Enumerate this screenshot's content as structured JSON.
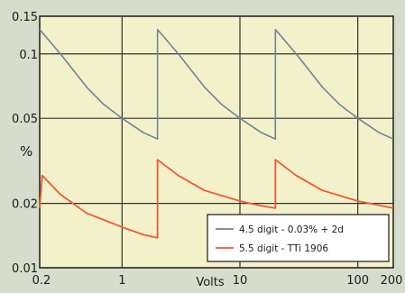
{
  "chart_data": {
    "type": "line",
    "title": "",
    "xlabel": "Volts",
    "ylabel": "%",
    "x_scale": "log",
    "y_scale": "log",
    "xlim": [
      0.2,
      200
    ],
    "ylim": [
      0.01,
      0.15
    ],
    "x_ticks": [
      {
        "value": 0.2,
        "label": "0.2"
      },
      {
        "value": 1,
        "label": "1"
      },
      {
        "value": 10,
        "label": "10"
      },
      {
        "value": 100,
        "label": "100"
      },
      {
        "value": 200,
        "label": "200"
      }
    ],
    "y_ticks": [
      {
        "value": 0.01,
        "label": "0.01"
      },
      {
        "value": 0.02,
        "label": "0.02"
      },
      {
        "value": 0.05,
        "label": "0.05"
      },
      {
        "value": 0.1,
        "label": "0.1"
      },
      {
        "value": 0.15,
        "label": "0.15"
      }
    ],
    "grid": true,
    "legend_position": "bottom-right",
    "series": [
      {
        "name": "4.5 digit - 0.03% + 2d",
        "color": "#6f8593",
        "segments": [
          [
            [
              0.2,
              0.13
            ],
            [
              0.3,
              0.1
            ],
            [
              0.5,
              0.07
            ],
            [
              0.7,
              0.058
            ],
            [
              1.0,
              0.05
            ],
            [
              1.5,
              0.043
            ],
            [
              1.999,
              0.04
            ]
          ],
          [
            [
              2.0,
              0.13
            ],
            [
              3.0,
              0.1
            ],
            [
              5.0,
              0.07
            ],
            [
              7.0,
              0.058
            ],
            [
              10.0,
              0.05
            ],
            [
              15.0,
              0.043
            ],
            [
              19.99,
              0.04
            ]
          ],
          [
            [
              20.0,
              0.13
            ],
            [
              30.0,
              0.1
            ],
            [
              50.0,
              0.07
            ],
            [
              70.0,
              0.058
            ],
            [
              100.0,
              0.05
            ],
            [
              150.0,
              0.043
            ],
            [
              200.0,
              0.04
            ]
          ]
        ]
      },
      {
        "name": "5.5 digit - TTi 1906",
        "color": "#ee5a32",
        "segments": [
          [
            [
              0.2,
              0.019
            ],
            [
              0.21,
              0.027
            ],
            [
              0.3,
              0.022
            ],
            [
              0.5,
              0.018
            ],
            [
              1.0,
              0.0155
            ],
            [
              1.5,
              0.0143
            ],
            [
              1.999,
              0.0138
            ]
          ],
          [
            [
              2.0,
              0.032
            ],
            [
              3.0,
              0.027
            ],
            [
              5.0,
              0.023
            ],
            [
              10.0,
              0.0205
            ],
            [
              15.0,
              0.0195
            ],
            [
              19.99,
              0.019
            ]
          ],
          [
            [
              20.0,
              0.032
            ],
            [
              30.0,
              0.027
            ],
            [
              50.0,
              0.023
            ],
            [
              100.0,
              0.0205
            ],
            [
              200.0,
              0.019
            ]
          ]
        ]
      }
    ]
  }
}
